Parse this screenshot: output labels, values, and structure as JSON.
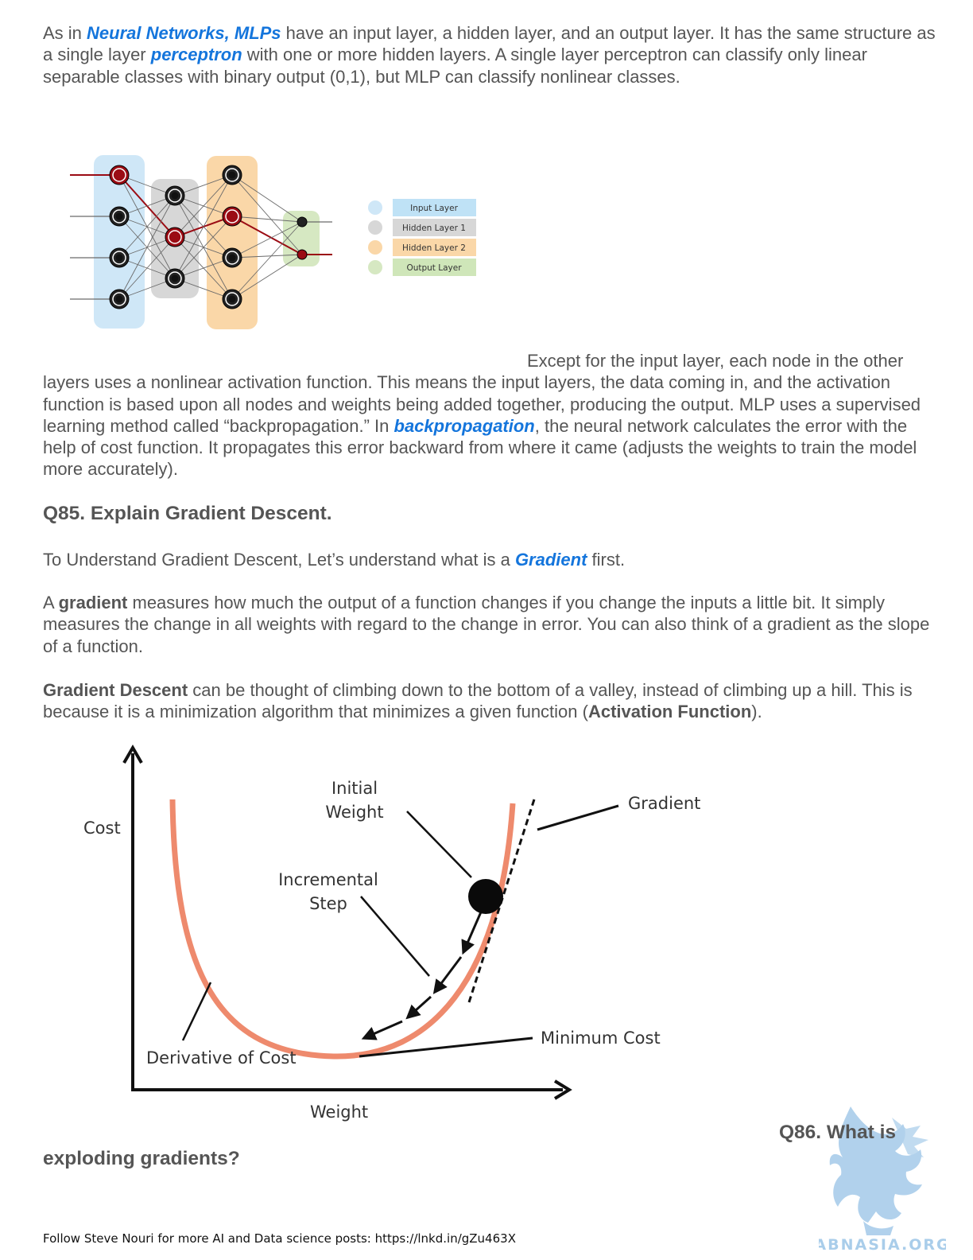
{
  "intro": {
    "t1": "As in ",
    "link1": "Neural Networks, MLPs",
    "t2": " have an input layer, a hidden layer, and an output layer. It has the same structure as a single layer ",
    "link2": "perceptron",
    "t3": " with one or more hidden layers. A single layer perceptron can classify only linear separable classes with binary output (0,1), but MLP can classify nonlinear classes."
  },
  "mlp_figure": {
    "legend": [
      "Input Layer",
      "Hidden Layer 1",
      "Hidden Layer 2",
      "Output Layer"
    ],
    "colors": {
      "input": "#cfe7f7",
      "hidden1": "#d7d7d7",
      "hidden2": "#fad7a8",
      "output": "#d6e8c2",
      "active_node": "#9b0c14",
      "node": "#222222"
    }
  },
  "mlp_text": {
    "lead": "Except for the input layer, each node in the other",
    "body1": "layers uses a nonlinear activation function. This means the input layers, the data coming in, and the activation function is based upon all nodes and weights being added together, producing the output. MLP uses a supervised learning method called “backpropagation.” In ",
    "link": "backpropagation",
    "body2": ", the neural network calculates the error with the help of cost function. It propagates this error backward from where it came (adjusts the weights to train the model more accurately)."
  },
  "q85": {
    "title": "Q85. Explain Gradient Descent.",
    "p1_a": "To Understand Gradient Descent, Let’s understand what is a ",
    "p1_link": "Gradient",
    "p1_b": " first.",
    "p2_a": "A ",
    "p2_bold": "gradient",
    "p2_b": " measures how much the output of a function changes if you change the inputs a little bit. It simply measures the change in all weights with regard to the change in error. You can also think of a gradient as the slope of a function.",
    "p3_bold": "Gradient Descent",
    "p3_a": " can be thought of climbing down to the bottom of a valley, instead of climbing up a hill.  This is because it is a minimization algorithm that minimizes a given function (",
    "p3_bold2": "Activation Function",
    "p3_b": ")."
  },
  "gd_figure": {
    "cost": "Cost",
    "weight": "Weight",
    "initial_1": "Initial",
    "initial_2": "Weight",
    "incremental_1": "Incremental",
    "incremental_2": "Step",
    "gradient": "Gradient",
    "minimum": "Minimum Cost",
    "derivative": "Derivative of Cost",
    "curve_color": "#ee8a6d"
  },
  "q86": {
    "part1": "Q86. What is",
    "part2": "exploding gradients?"
  },
  "watermark": {
    "text": "ABNASIA.ORG",
    "color": "#a9cdea"
  },
  "footer": "Follow Steve Nouri for more AI and Data science posts: https://lnkd.in/gZu463X"
}
